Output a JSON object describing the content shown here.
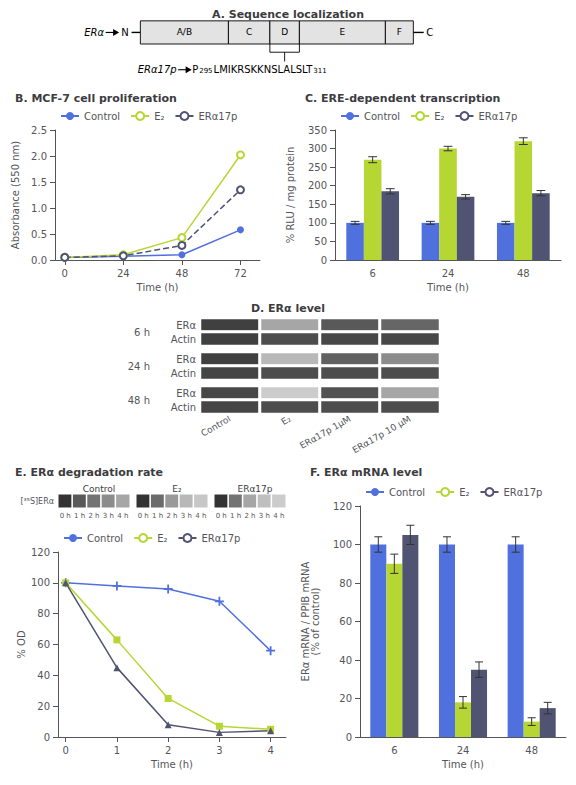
{
  "chart_data": [
    {
      "type": "diagram",
      "title": "A. Sequence localization",
      "annotations": [
        "ERα",
        "N",
        "A/B",
        "C",
        "D",
        "E",
        "F",
        "C",
        "ERα17p",
        "P",
        "295",
        "LMIKRSKKNSLALSLT",
        "311"
      ]
    },
    {
      "type": "line",
      "title": "B. MCF-7 cell proliferation",
      "xlabel": "Time (h)",
      "ylabel": "Absorbance (550 nm)",
      "x": [
        0,
        24,
        48,
        72
      ],
      "xlim": [
        -4,
        80
      ],
      "xticks": [
        0,
        24,
        48,
        72
      ],
      "ylim": [
        0,
        2.5
      ],
      "yticks": [
        {
          "value": 0,
          "label": "0.0"
        },
        0.5,
        {
          "value": 1,
          "label": "1.0"
        },
        1.5,
        {
          "value": 2,
          "label": "2.0"
        },
        2.5
      ],
      "grid": false,
      "legend": "top",
      "series": [
        {
          "name": "Control",
          "values": [
            0.05,
            0.07,
            0.1,
            0.58
          ],
          "marker": "circle",
          "line_style": "solid"
        },
        {
          "name": "E₂",
          "values": [
            0.05,
            0.1,
            0.43,
            2.02
          ],
          "marker": "open_circle",
          "line_style": "solid"
        },
        {
          "name": "ERα17p",
          "values": [
            0.05,
            0.08,
            0.28,
            1.35
          ],
          "marker": "open_circle",
          "line_style": "dashed"
        }
      ]
    },
    {
      "type": "bar",
      "title": "C. ERE-dependent transcription",
      "xlabel": "Time (h)",
      "ylabel": "% RLU / mg protein",
      "categories": [
        "6",
        "24",
        "48"
      ],
      "ylim": [
        0,
        350
      ],
      "yticks": [
        0,
        50,
        100,
        150,
        200,
        250,
        300,
        350
      ],
      "grid": false,
      "legend": "top",
      "series": [
        {
          "name": "Control",
          "values": [
            100,
            100,
            100
          ],
          "errors": [
            4,
            4,
            4
          ]
        },
        {
          "name": "E₂",
          "values": [
            270,
            300,
            320
          ],
          "errors": [
            8,
            6,
            9
          ]
        },
        {
          "name": "ERα17p",
          "values": [
            185,
            170,
            180
          ],
          "errors": [
            7,
            6,
            7
          ]
        }
      ]
    },
    {
      "type": "heatmap",
      "title": "D. ERα level",
      "x": [
        "Control",
        "E₂",
        "ERα17p 1μM",
        "ERα17p 10 μM"
      ],
      "y": [
        "ERα",
        "Actin"
      ],
      "zlim": [
        0,
        1
      ],
      "series": [
        {
          "title": "6 h",
          "cells": [
            [
              0.25,
              0.65,
              0.35,
              0.4
            ],
            [
              0.25,
              0.3,
              0.28,
              0.28
            ]
          ]
        },
        {
          "title": "24 h",
          "cells": [
            [
              0.25,
              0.72,
              0.38,
              0.55
            ],
            [
              0.27,
              0.3,
              0.3,
              0.3
            ]
          ]
        },
        {
          "title": "48 h",
          "cells": [
            [
              0.28,
              0.8,
              0.32,
              0.65
            ],
            [
              0.27,
              0.3,
              0.3,
              0.3
            ]
          ]
        }
      ]
    },
    {
      "type": "heatmap",
      "x": [
        "0 h",
        "1 h",
        "2 h",
        "3 h",
        "4 h"
      ],
      "y": [
        "[³⁵S]ERα"
      ],
      "zlim": [
        0,
        1
      ],
      "series": [
        {
          "title": "Control",
          "cells": [
            [
              0.2,
              0.35,
              0.45,
              0.55,
              0.65
            ]
          ]
        },
        {
          "title": "E₂",
          "cells": [
            [
              0.2,
              0.42,
              0.6,
              0.72,
              0.78
            ]
          ]
        },
        {
          "title": "ERα17p",
          "cells": [
            [
              0.2,
              0.45,
              0.65,
              0.75,
              0.8
            ]
          ]
        }
      ]
    },
    {
      "type": "line",
      "title": "E. ERα degradation rate",
      "xlabel": "Time (h)",
      "ylabel": "% OD",
      "x": [
        0,
        1,
        2,
        3,
        4
      ],
      "xlim": [
        -0.15,
        4.3
      ],
      "xticks": [
        0,
        1,
        2,
        3,
        4
      ],
      "ylim": [
        0,
        120
      ],
      "yticks": [
        0,
        20,
        40,
        60,
        80,
        100,
        120
      ],
      "grid": false,
      "legend": "top",
      "series": [
        {
          "name": "Control",
          "values": [
            100,
            98,
            96,
            88,
            56
          ],
          "marker": "plus",
          "line_style": "solid"
        },
        {
          "name": "E₂",
          "values": [
            100,
            63,
            25,
            7,
            5
          ],
          "marker": "square",
          "line_style": "solid"
        },
        {
          "name": "ERα17p",
          "values": [
            100,
            45,
            8,
            3,
            4
          ],
          "marker": "triangle",
          "line_style": "solid"
        }
      ]
    },
    {
      "type": "bar",
      "title": "F. ERα mRNA level",
      "xlabel": "Time (h)",
      "ylabel": "ERα mRNA / PPIB mRNA\n(% of control)",
      "categories": [
        "6",
        "24",
        "48"
      ],
      "ylim": [
        0,
        120
      ],
      "yticks": [
        0,
        20,
        40,
        60,
        80,
        100,
        120
      ],
      "grid": false,
      "legend": "top",
      "series": [
        {
          "name": "Control",
          "values": [
            100,
            100,
            100
          ],
          "errors": [
            4,
            4,
            4
          ]
        },
        {
          "name": "E₂",
          "values": [
            90,
            18,
            8
          ],
          "errors": [
            5,
            3,
            2
          ]
        },
        {
          "name": "ERα17p",
          "values": [
            105,
            35,
            15
          ],
          "errors": [
            5,
            4,
            3
          ]
        }
      ]
    }
  ]
}
